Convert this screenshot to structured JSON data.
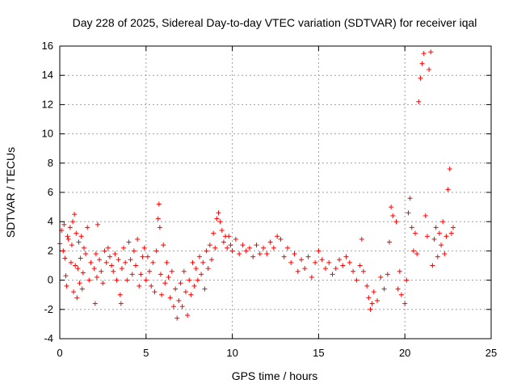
{
  "chart_data": {
    "type": "scatter",
    "title": "Day 228 of 2025, Sidereal Day-to-day VTEC variation (SDTVAR) for receiver iqal",
    "xlabel": "GPS time / hours",
    "ylabel": "SDTVAR / TECUs",
    "xlim": [
      0,
      25
    ],
    "ylim": [
      -4,
      16
    ],
    "xticks": [
      0,
      5,
      10,
      15,
      20,
      25
    ],
    "yticks": [
      -4,
      -2,
      0,
      2,
      4,
      6,
      8,
      10,
      12,
      14,
      16
    ],
    "xtick_labels": [
      "0",
      "5",
      "10",
      "15",
      "20",
      "25"
    ],
    "ytick_labels": [
      "-4",
      "-2",
      "0",
      "2",
      "4",
      "6",
      "8",
      "10",
      "12",
      "14",
      "16"
    ],
    "grid": true,
    "marker": "+",
    "marker_color": "#ff0000",
    "series": [
      {
        "name": "SDTVAR",
        "points": [
          [
            0.0,
            2.5
          ],
          [
            0.1,
            3.4
          ],
          [
            0.2,
            2.0
          ],
          [
            0.25,
            3.8
          ],
          [
            0.3,
            1.5
          ],
          [
            0.35,
            0.3
          ],
          [
            0.4,
            -0.4
          ],
          [
            0.45,
            3.0
          ],
          [
            0.5,
            2.8
          ],
          [
            0.6,
            3.6
          ],
          [
            0.65,
            1.2
          ],
          [
            0.7,
            2.4
          ],
          [
            0.75,
            4.0
          ],
          [
            0.8,
            -0.8
          ],
          [
            0.85,
            4.5
          ],
          [
            0.9,
            1.0
          ],
          [
            0.95,
            3.2
          ],
          [
            1.0,
            -1.2
          ],
          [
            1.05,
            0.8
          ],
          [
            1.1,
            2.6
          ],
          [
            1.15,
            -0.2
          ],
          [
            1.2,
            1.5
          ],
          [
            1.25,
            3.0
          ],
          [
            1.3,
            -0.6
          ],
          [
            1.35,
            0.5
          ],
          [
            1.4,
            2.2
          ],
          [
            1.5,
            1.8
          ],
          [
            1.6,
            3.6
          ],
          [
            1.7,
            0.0
          ],
          [
            1.8,
            1.2
          ],
          [
            2.0,
            0.8
          ],
          [
            2.05,
            -1.6
          ],
          [
            2.1,
            1.8
          ],
          [
            2.15,
            0.2
          ],
          [
            2.2,
            3.8
          ],
          [
            2.3,
            1.4
          ],
          [
            2.4,
            0.6
          ],
          [
            2.5,
            -0.2
          ],
          [
            2.6,
            2.0
          ],
          [
            2.7,
            1.2
          ],
          [
            2.8,
            2.2
          ],
          [
            2.9,
            1.6
          ],
          [
            3.0,
            1.0
          ],
          [
            3.1,
            0.6
          ],
          [
            3.2,
            1.8
          ],
          [
            3.3,
            0.0
          ],
          [
            3.4,
            1.4
          ],
          [
            3.5,
            -1.0
          ],
          [
            3.55,
            -1.6
          ],
          [
            3.6,
            0.8
          ],
          [
            3.7,
            2.2
          ],
          [
            3.8,
            1.2
          ],
          [
            3.9,
            0.0
          ],
          [
            4.0,
            2.6
          ],
          [
            4.1,
            1.4
          ],
          [
            4.2,
            0.4
          ],
          [
            4.3,
            2.0
          ],
          [
            4.4,
            1.0
          ],
          [
            4.5,
            2.8
          ],
          [
            4.6,
            -0.4
          ],
          [
            4.7,
            0.4
          ],
          [
            4.8,
            1.6
          ],
          [
            4.9,
            2.2
          ],
          [
            5.0,
            0.0
          ],
          [
            5.1,
            1.6
          ],
          [
            5.2,
            0.6
          ],
          [
            5.3,
            -0.4
          ],
          [
            5.4,
            1.2
          ],
          [
            5.5,
            -0.8
          ],
          [
            5.6,
            2.0
          ],
          [
            5.7,
            4.2
          ],
          [
            5.75,
            5.2
          ],
          [
            5.8,
            3.6
          ],
          [
            5.85,
            0.4
          ],
          [
            5.9,
            -1.0
          ],
          [
            6.0,
            2.4
          ],
          [
            6.1,
            -0.2
          ],
          [
            6.2,
            1.2
          ],
          [
            6.3,
            0.2
          ],
          [
            6.4,
            -1.2
          ],
          [
            6.5,
            0.6
          ],
          [
            6.6,
            -1.8
          ],
          [
            6.7,
            -0.6
          ],
          [
            6.8,
            -2.6
          ],
          [
            6.9,
            -1.4
          ],
          [
            7.0,
            -0.2
          ],
          [
            7.1,
            -1.8
          ],
          [
            7.2,
            0.6
          ],
          [
            7.3,
            -0.8
          ],
          [
            7.4,
            -2.4
          ],
          [
            7.5,
            0.0
          ],
          [
            7.6,
            -1.0
          ],
          [
            7.7,
            1.2
          ],
          [
            7.8,
            -0.4
          ],
          [
            7.9,
            0.8
          ],
          [
            8.0,
            0.0
          ],
          [
            8.1,
            1.6
          ],
          [
            8.2,
            0.4
          ],
          [
            8.3,
            1.2
          ],
          [
            8.4,
            -0.6
          ],
          [
            8.5,
            2.0
          ],
          [
            8.6,
            0.8
          ],
          [
            8.7,
            2.4
          ],
          [
            8.8,
            1.4
          ],
          [
            8.9,
            3.2
          ],
          [
            9.0,
            2.2
          ],
          [
            9.1,
            4.2
          ],
          [
            9.2,
            4.6
          ],
          [
            9.3,
            4.0
          ],
          [
            9.4,
            3.4
          ],
          [
            9.5,
            2.6
          ],
          [
            9.6,
            3.0
          ],
          [
            9.7,
            2.2
          ],
          [
            9.8,
            3.0
          ],
          [
            9.9,
            2.4
          ],
          [
            10.0,
            2.0
          ],
          [
            10.2,
            2.8
          ],
          [
            10.4,
            1.8
          ],
          [
            10.6,
            2.4
          ],
          [
            10.8,
            2.0
          ],
          [
            11.0,
            2.2
          ],
          [
            11.2,
            1.6
          ],
          [
            11.4,
            2.4
          ],
          [
            11.6,
            1.8
          ],
          [
            11.8,
            2.2
          ],
          [
            12.0,
            1.8
          ],
          [
            12.2,
            2.6
          ],
          [
            12.4,
            2.2
          ],
          [
            12.6,
            3.0
          ],
          [
            12.8,
            2.8
          ],
          [
            13.0,
            1.6
          ],
          [
            13.2,
            2.2
          ],
          [
            13.4,
            1.2
          ],
          [
            13.6,
            1.8
          ],
          [
            13.8,
            0.6
          ],
          [
            14.0,
            1.4
          ],
          [
            14.2,
            0.8
          ],
          [
            14.4,
            1.6
          ],
          [
            14.6,
            0.2
          ],
          [
            14.8,
            1.2
          ],
          [
            15.0,
            2.0
          ],
          [
            15.2,
            1.4
          ],
          [
            15.4,
            0.8
          ],
          [
            15.6,
            1.2
          ],
          [
            15.8,
            0.4
          ],
          [
            16.0,
            0.8
          ],
          [
            16.2,
            1.4
          ],
          [
            16.4,
            1.0
          ],
          [
            16.6,
            1.6
          ],
          [
            16.8,
            1.2
          ],
          [
            17.0,
            0.6
          ],
          [
            17.2,
            0.0
          ],
          [
            17.4,
            1.0
          ],
          [
            17.5,
            2.8
          ],
          [
            17.6,
            0.6
          ],
          [
            17.8,
            -0.4
          ],
          [
            17.9,
            -1.2
          ],
          [
            18.0,
            -2.0
          ],
          [
            18.1,
            -1.6
          ],
          [
            18.2,
            -0.8
          ],
          [
            18.4,
            -1.4
          ],
          [
            18.6,
            0.2
          ],
          [
            18.8,
            -0.6
          ],
          [
            19.0,
            0.4
          ],
          [
            19.1,
            2.6
          ],
          [
            19.2,
            5.0
          ],
          [
            19.3,
            4.4
          ],
          [
            19.5,
            4.0
          ],
          [
            19.6,
            -0.6
          ],
          [
            19.7,
            0.6
          ],
          [
            19.8,
            -1.0
          ],
          [
            20.0,
            -1.6
          ],
          [
            20.1,
            0.0
          ],
          [
            20.2,
            4.6
          ],
          [
            20.3,
            5.6
          ],
          [
            20.4,
            3.6
          ],
          [
            20.5,
            2.0
          ],
          [
            20.6,
            3.2
          ],
          [
            20.7,
            1.8
          ],
          [
            20.8,
            12.2
          ],
          [
            20.9,
            13.8
          ],
          [
            21.0,
            14.8
          ],
          [
            21.1,
            15.5
          ],
          [
            21.2,
            4.4
          ],
          [
            21.3,
            3.0
          ],
          [
            21.4,
            14.4
          ],
          [
            21.5,
            15.6
          ],
          [
            21.6,
            1.0
          ],
          [
            21.7,
            2.8
          ],
          [
            21.8,
            3.6
          ],
          [
            21.9,
            1.6
          ],
          [
            22.0,
            3.2
          ],
          [
            22.1,
            2.4
          ],
          [
            22.2,
            4.0
          ],
          [
            22.3,
            1.8
          ],
          [
            22.4,
            3.0
          ],
          [
            22.5,
            6.2
          ],
          [
            22.6,
            7.6
          ],
          [
            22.7,
            3.2
          ],
          [
            22.8,
            3.6
          ]
        ]
      }
    ]
  }
}
